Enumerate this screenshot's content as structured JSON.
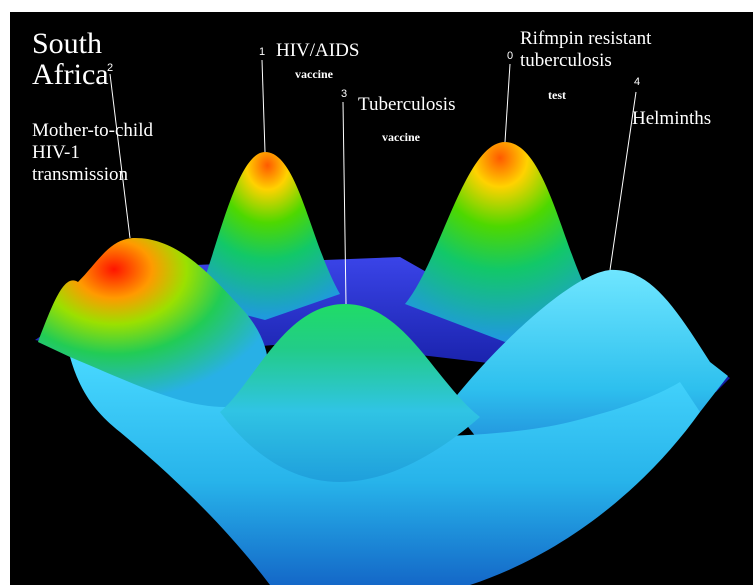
{
  "title": {
    "line1": "South",
    "line2": "Africa"
  },
  "peaks": [
    {
      "index": "2",
      "label_lines": [
        "Mother-to-child",
        "HIV-1",
        "transmission"
      ],
      "sublabel": ""
    },
    {
      "index": "1",
      "label_lines": [
        "HIV/AIDS"
      ],
      "sublabel": "vaccine"
    },
    {
      "index": "3",
      "label_lines": [
        "Tuberculosis"
      ],
      "sublabel": "vaccine"
    },
    {
      "index": "0",
      "label_lines": [
        "Rifmpin resistant",
        "tuberculosis"
      ],
      "sublabel": "test"
    },
    {
      "index": "4",
      "label_lines": [
        "Helminths"
      ],
      "sublabel": ""
    }
  ],
  "colors": {
    "background": "#000000",
    "peak_high": "#ff2a00",
    "peak_mid": "#22cc22",
    "slope": "#33ccff",
    "base": "#1a22cc",
    "leader_line": "#ffffff"
  }
}
